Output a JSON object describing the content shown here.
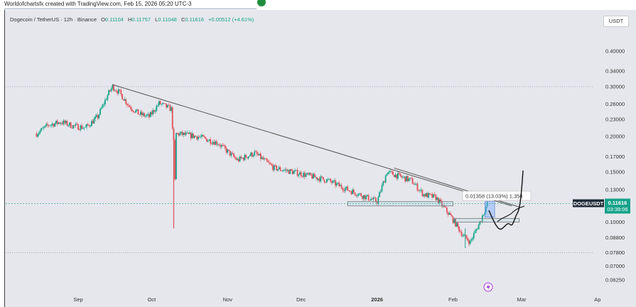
{
  "credit": "Worldofchartsfx created with TradingView.com, Feb 15, 2026 05:20 UTC-3",
  "legend": {
    "symbol": "Dogecoin / TetherUS · 12h · Binance",
    "open_label": "O",
    "open": "0.11104",
    "high_label": "H",
    "high": "0.11757",
    "low_label": "L",
    "low": "0.11048",
    "close_label": "C",
    "close": "0.11616",
    "change": "+0.00512 (+4.61%)"
  },
  "currency_button": "USDT",
  "colors": {
    "up": "#16a38a",
    "down": "#e0505a",
    "trendline": "#555555",
    "zone": "#9fdbe6"
  },
  "chart_data": {
    "type": "candlestick",
    "y_scale": "log",
    "y_ticks": [
      "0.40000",
      "0.34000",
      "0.30000",
      "0.26000",
      "0.23000",
      "0.20000",
      "0.17000",
      "0.15000",
      "0.13000",
      "0.11000",
      "0.10000",
      "0.08800",
      "0.07800",
      "0.07000",
      "0.06250"
    ],
    "x_ticks": [
      "Sep",
      "Oct",
      "Nov",
      "Dec",
      "2026",
      "Feb",
      "Mar",
      "Ap"
    ],
    "price_series": [
      [
        "2025-08-15",
        0.205
      ],
      [
        "2025-08-20",
        0.22
      ],
      [
        "2025-08-25",
        0.225
      ],
      [
        "2025-08-30",
        0.218
      ],
      [
        "2025-09-04",
        0.215
      ],
      [
        "2025-09-09",
        0.235
      ],
      [
        "2025-09-13",
        0.28
      ],
      [
        "2025-09-15",
        0.3
      ],
      [
        "2025-09-18",
        0.285
      ],
      [
        "2025-09-22",
        0.255
      ],
      [
        "2025-09-26",
        0.24
      ],
      [
        "2025-09-30",
        0.235
      ],
      [
        "2025-10-04",
        0.262
      ],
      [
        "2025-10-09",
        0.25
      ],
      [
        "2025-10-10",
        0.19
      ],
      [
        "2025-10-10",
        0.095
      ],
      [
        "2025-10-11",
        0.205
      ],
      [
        "2025-10-20",
        0.2
      ],
      [
        "2025-10-28",
        0.19
      ],
      [
        "2025-11-05",
        0.165
      ],
      [
        "2025-11-12",
        0.175
      ],
      [
        "2025-11-20",
        0.155
      ],
      [
        "2025-11-28",
        0.15
      ],
      [
        "2025-12-05",
        0.145
      ],
      [
        "2025-12-12",
        0.14
      ],
      [
        "2025-12-20",
        0.13
      ],
      [
        "2025-12-28",
        0.122
      ],
      [
        "2026-01-01",
        0.118
      ],
      [
        "2026-01-05",
        0.15
      ],
      [
        "2026-01-10",
        0.145
      ],
      [
        "2026-01-15",
        0.14
      ],
      [
        "2026-01-20",
        0.125
      ],
      [
        "2026-01-25",
        0.122
      ],
      [
        "2026-01-31",
        0.105
      ],
      [
        "2026-02-05",
        0.09
      ],
      [
        "2026-02-08",
        0.085
      ],
      [
        "2026-02-12",
        0.1
      ],
      [
        "2026-02-15",
        0.11616
      ]
    ],
    "annotations": [
      {
        "type": "trendline",
        "from": [
          "2025-09-15",
          0.305
        ],
        "to": [
          "2026-02-25",
          0.114
        ]
      },
      {
        "type": "trendline",
        "from": [
          "2026-01-08",
          0.155
        ],
        "to": [
          "2026-02-28",
          0.113
        ]
      },
      {
        "type": "zone",
        "from": [
          "2025-12-20",
          0.118
        ],
        "to": [
          "2026-02-01",
          0.114
        ]
      },
      {
        "type": "zone",
        "from": [
          "2026-02-02",
          0.103
        ],
        "to": [
          "2026-02-28",
          0.1
        ]
      },
      {
        "type": "measure",
        "label": "0.01358 (13.03%) 1,358",
        "from_price": 0.104,
        "to_price": 0.118
      }
    ],
    "price_tag": {
      "symbol": "DOGEUSDT",
      "price": "0.11616",
      "countdown": "03:39:06"
    },
    "hline_price": 0.11616
  }
}
